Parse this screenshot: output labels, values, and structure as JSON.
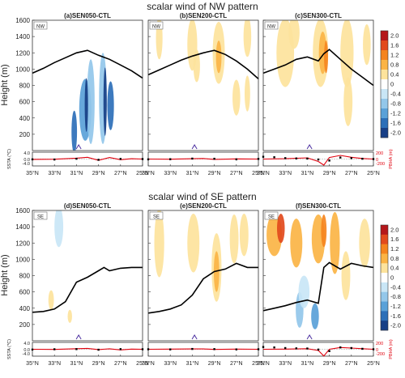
{
  "figure": {
    "row_titles": [
      "scalar wind of NW pattern",
      "scalar wind of SE pattern"
    ],
    "y_label": "Height (m)",
    "ssta_label": "SSTA (℃)",
    "pbha_label": "PBHA (m)",
    "x_ticks": [
      "35°N",
      "33°N",
      "31°N",
      "29°N",
      "27°N",
      "25°N"
    ],
    "y_ticks": [
      200,
      400,
      600,
      800,
      1000,
      1200,
      1400,
      1600
    ],
    "ssta_ticks": [
      "4.0",
      "0.0",
      "-4.0"
    ],
    "pbha_ticks": [
      "200",
      "0",
      "-200"
    ]
  },
  "colorbar": {
    "labels": [
      "2.0",
      "1.6",
      "1.2",
      "0.8",
      "0.4",
      "0",
      "-0.4",
      "-0.8",
      "-1.2",
      "-1.6",
      "-2.0"
    ],
    "colors": [
      "#b5171b",
      "#e24a1d",
      "#f5841e",
      "#fbb445",
      "#fde39c",
      "#ffffff",
      "#c9e6f6",
      "#93c7ea",
      "#5aa1d8",
      "#2c6fb8",
      "#173f86"
    ]
  },
  "colors": {
    "boundary_layer": "#000000",
    "pbha_line": "#e0000d",
    "ssta_marker": "#000000",
    "site_marker": "#4b2fa0"
  },
  "chart_data": [
    {
      "type": "heatmap",
      "title": "(a)SEN050-CTL",
      "pattern": "NW",
      "ylim": [
        0,
        1600
      ],
      "xlim": [
        35,
        25
      ],
      "boundary_layer": {
        "x": [
          35,
          34,
          33,
          32,
          31,
          30,
          29,
          28,
          27,
          26,
          25
        ],
        "y": [
          950,
          1010,
          1080,
          1140,
          1200,
          1230,
          1170,
          1120,
          1050,
          980,
          890
        ]
      },
      "ssta": {
        "x": [
          35,
          33,
          31,
          29,
          27,
          25
        ],
        "y": [
          -0.2,
          -0.3,
          0.2,
          -0.5,
          0.1,
          0.0
        ]
      },
      "pbha": {
        "x": [
          35,
          33,
          31,
          30,
          29,
          28,
          27,
          26,
          25
        ],
        "y": [
          -10,
          -5,
          30,
          60,
          -40,
          50,
          -20,
          10,
          0
        ]
      },
      "site_lat": 30.8
    },
    {
      "type": "heatmap",
      "title": "(b)SEN200-CTL",
      "pattern": "NW",
      "ylim": [
        0,
        1600
      ],
      "xlim": [
        35,
        25
      ],
      "boundary_layer": {
        "x": [
          35,
          34,
          33,
          32,
          31,
          30,
          29,
          28,
          27,
          26,
          25
        ],
        "y": [
          930,
          990,
          1050,
          1110,
          1160,
          1200,
          1230,
          1180,
          1100,
          1000,
          880
        ]
      },
      "ssta": {
        "x": [
          35,
          33,
          31,
          29,
          27,
          25
        ],
        "y": [
          -0.2,
          -0.1,
          0.3,
          0.2,
          -0.2,
          0.1
        ]
      },
      "pbha": {
        "x": [
          35,
          33,
          31,
          30,
          29,
          27,
          25
        ],
        "y": [
          0,
          -5,
          10,
          20,
          -10,
          5,
          0
        ]
      },
      "site_lat": 30.8
    },
    {
      "type": "heatmap",
      "title": "(c)SEN300-CTL",
      "pattern": "NW",
      "ylim": [
        0,
        1600
      ],
      "xlim": [
        35,
        25
      ],
      "boundary_layer": {
        "x": [
          35,
          34,
          33,
          32,
          31,
          30,
          29.5,
          29,
          28,
          27,
          26,
          25
        ],
        "y": [
          950,
          1000,
          1050,
          1120,
          1150,
          1100,
          1190,
          1240,
          1120,
          1000,
          900,
          800
        ]
      },
      "ssta": {
        "x": [
          35,
          34,
          33,
          32,
          31,
          30,
          29,
          28,
          27,
          26,
          25
        ],
        "y": [
          1.5,
          1.2,
          0.6,
          0.4,
          0.3,
          -0.3,
          -1.0,
          1.0,
          0.6,
          0.2,
          0.0
        ]
      },
      "pbha": {
        "x": [
          35,
          33,
          31,
          30,
          29.5,
          29,
          28,
          27,
          26,
          25
        ],
        "y": [
          0,
          10,
          40,
          -80,
          -200,
          50,
          120,
          60,
          20,
          0
        ]
      },
      "site_lat": 30.8
    },
    {
      "type": "heatmap",
      "title": "(d)SEN050-CTL",
      "pattern": "SE",
      "ylim": [
        0,
        1600
      ],
      "xlim": [
        35,
        25
      ],
      "boundary_layer": {
        "x": [
          35,
          34,
          33,
          32,
          31,
          30,
          29,
          28.5,
          28,
          27,
          26,
          25
        ],
        "y": [
          350,
          360,
          390,
          480,
          720,
          780,
          860,
          900,
          860,
          890,
          900,
          900
        ]
      },
      "ssta": {
        "x": [
          35,
          33,
          31,
          29,
          27,
          25
        ],
        "y": [
          -0.2,
          0.0,
          0.1,
          -0.3,
          0.1,
          0.0
        ]
      },
      "pbha": {
        "x": [
          35,
          33,
          31,
          30,
          29,
          28,
          27,
          26,
          25
        ],
        "y": [
          0,
          -5,
          20,
          30,
          -10,
          15,
          -20,
          5,
          0
        ]
      },
      "site_lat": 30.8
    },
    {
      "type": "heatmap",
      "title": "(e)SEN200-CTL",
      "pattern": "SE",
      "ylim": [
        0,
        1600
      ],
      "xlim": [
        35,
        25
      ],
      "boundary_layer": {
        "x": [
          35,
          34,
          33,
          32,
          31,
          30,
          29,
          28,
          27,
          26,
          25
        ],
        "y": [
          340,
          360,
          390,
          440,
          560,
          760,
          850,
          880,
          950,
          900,
          900
        ]
      },
      "ssta": {
        "x": [
          35,
          33,
          31,
          29,
          27,
          25
        ],
        "y": [
          0.0,
          -0.1,
          0.2,
          0.1,
          -0.1,
          0.0
        ]
      },
      "pbha": {
        "x": [
          35,
          33,
          31,
          30,
          29,
          27,
          25
        ],
        "y": [
          0,
          5,
          10,
          10,
          -5,
          5,
          0
        ]
      },
      "site_lat": 30.8
    },
    {
      "type": "heatmap",
      "title": "(f)SEN300-CTL",
      "pattern": "SE",
      "ylim": [
        0,
        1600
      ],
      "xlim": [
        35,
        25
      ],
      "boundary_layer": {
        "x": [
          35,
          34,
          33,
          32,
          31,
          30,
          29.5,
          29,
          28,
          27,
          26,
          25
        ],
        "y": [
          370,
          400,
          430,
          470,
          500,
          460,
          900,
          960,
          880,
          950,
          920,
          900
        ]
      },
      "ssta": {
        "x": [
          35,
          34,
          33,
          32,
          31,
          30,
          29,
          28,
          27,
          26,
          25
        ],
        "y": [
          1.5,
          1.2,
          0.8,
          0.6,
          0.5,
          -0.2,
          -1.2,
          1.2,
          0.8,
          0.3,
          0.0
        ]
      },
      "pbha": {
        "x": [
          35,
          33,
          31,
          30,
          29.5,
          29,
          28,
          27,
          26,
          25
        ],
        "y": [
          0,
          5,
          20,
          -40,
          -220,
          0,
          60,
          40,
          20,
          0
        ]
      },
      "site_lat": 30.8
    }
  ]
}
